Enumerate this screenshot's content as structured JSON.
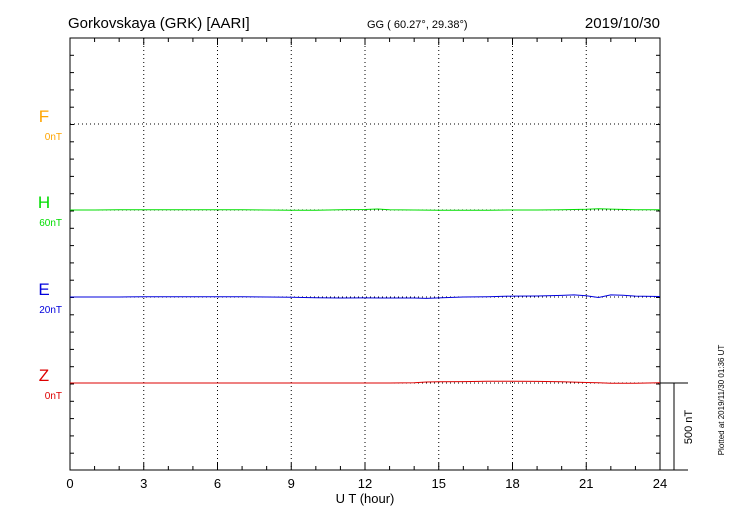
{
  "header": {
    "station": "Gorkovskaya (GRK)  [AARI]",
    "coords": "GG ( 60.27°,  29.38°)",
    "date": "2019/10/30"
  },
  "footer": {
    "plotted": "Plotted at 2019/11/30 01:36 UT",
    "scale": "500 nT"
  },
  "colors": {
    "F": "#ffa500",
    "H": "#00dd00",
    "E": "#0000dd",
    "Z": "#dd0000"
  },
  "chart_data": {
    "type": "line",
    "title": "Gorkovskaya (GRK)  [AARI]",
    "xlabel": "U T (hour)",
    "xlim": [
      0,
      24
    ],
    "xticks": [
      "0",
      "3",
      "6",
      "9",
      "12",
      "15",
      "18",
      "21",
      "24"
    ],
    "scale_bar_nT": 500,
    "grid": true,
    "series": [
      {
        "name": "F",
        "offset": "0nT",
        "x": [],
        "values": []
      },
      {
        "name": "H",
        "offset": "60nT",
        "x": [
          0,
          1,
          2,
          3,
          4,
          5,
          6,
          7,
          8,
          9,
          10,
          11,
          12,
          12.5,
          13,
          14,
          15,
          16,
          17,
          18,
          19,
          20,
          21,
          21.5,
          22,
          23,
          24
        ],
        "values": [
          0,
          0,
          1,
          1,
          1,
          1,
          2,
          1,
          0,
          -2,
          -1,
          1,
          3,
          6,
          2,
          0,
          -1,
          -1,
          -1,
          0,
          0,
          2,
          4,
          7,
          5,
          2,
          1
        ]
      },
      {
        "name": "E",
        "offset": "20nT",
        "x": [
          0,
          1,
          2,
          3,
          4,
          5,
          6,
          7,
          8,
          9,
          10,
          11,
          12,
          13,
          14,
          14.5,
          15,
          16,
          17,
          18,
          19,
          20,
          20.5,
          21,
          21.5,
          22,
          22.5,
          23,
          24
        ],
        "values": [
          0,
          0,
          0,
          1,
          1,
          1,
          1,
          1,
          0,
          -2,
          -4,
          -6,
          -5,
          -6,
          -6,
          -8,
          -5,
          0,
          2,
          5,
          6,
          9,
          12,
          7,
          -3,
          12,
          10,
          5,
          3
        ]
      },
      {
        "name": "Z",
        "offset": "0nT",
        "x": [
          0,
          1,
          2,
          3,
          4,
          5,
          6,
          7,
          8,
          9,
          10,
          11,
          12,
          13,
          14,
          14.5,
          15,
          16,
          17,
          18,
          19,
          20,
          21,
          21.5,
          22,
          22.5,
          23,
          24
        ],
        "values": [
          0,
          0,
          0,
          0,
          0,
          0,
          0,
          0,
          0,
          0,
          0,
          0,
          0,
          0,
          2,
          6,
          7,
          8,
          10,
          10,
          9,
          7,
          3,
          2,
          -1,
          -2,
          -1,
          1
        ]
      }
    ]
  }
}
